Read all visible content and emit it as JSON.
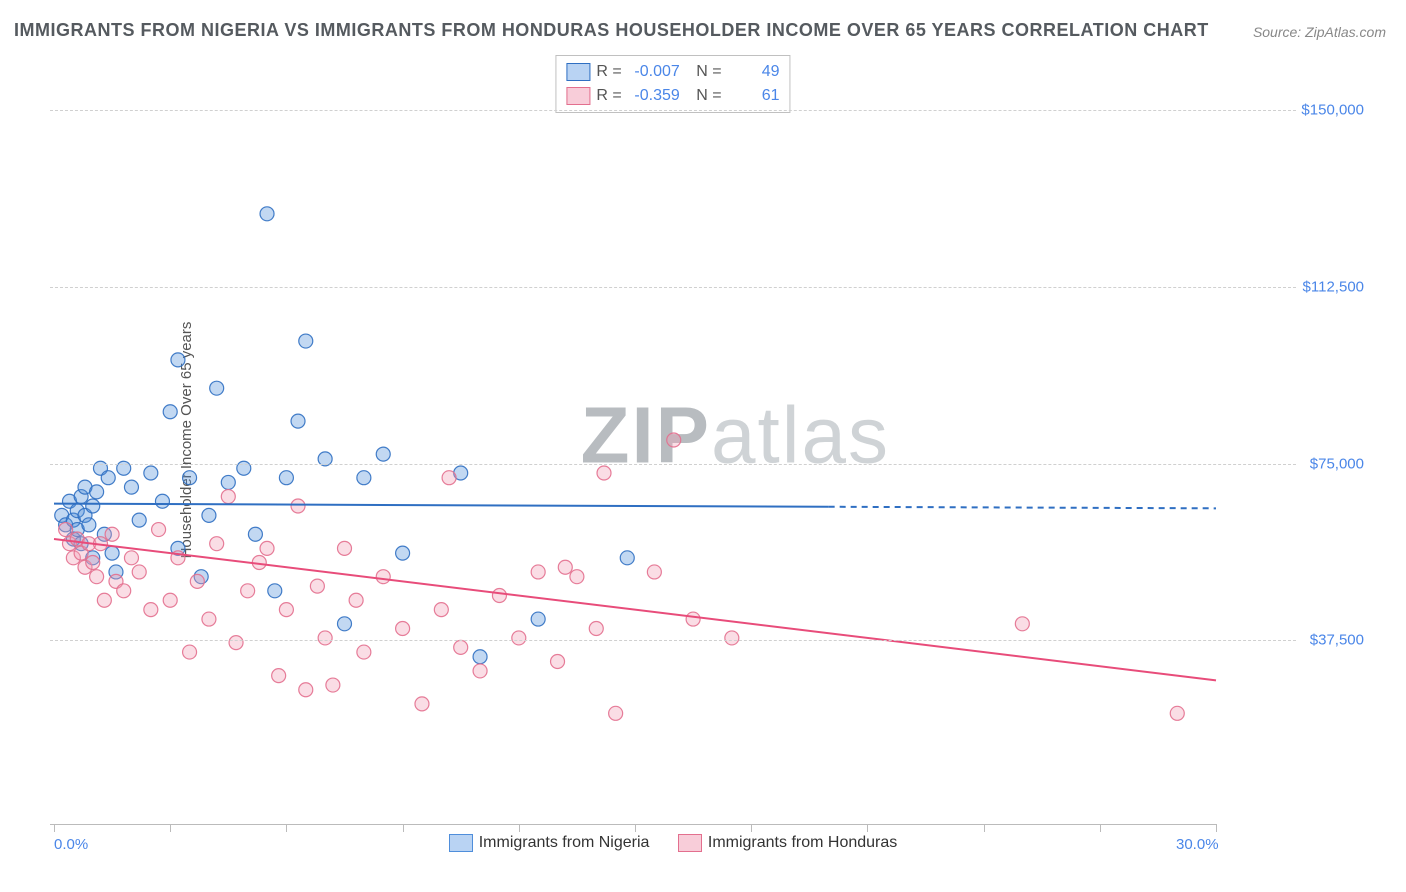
{
  "title": "IMMIGRANTS FROM NIGERIA VS IMMIGRANTS FROM HONDURAS HOUSEHOLDER INCOME OVER 65 YEARS CORRELATION CHART",
  "source_text": "Source: ZipAtlas.com",
  "watermark": "ZIPatlas",
  "chart": {
    "type": "scatter",
    "xlim": [
      0,
      30
    ],
    "ylim": [
      0,
      160000
    ],
    "x_tick_positions": [
      0,
      3,
      6,
      9,
      12,
      15,
      18,
      21,
      24,
      27,
      30
    ],
    "x_tick_labels_shown": {
      "0": "0.0%",
      "30": "30.0%"
    },
    "y_grid_values": [
      37500,
      75000,
      112500,
      150000
    ],
    "y_tick_labels": [
      "$37,500",
      "$75,000",
      "$112,500",
      "$150,000"
    ],
    "ylabel": "Householder Income Over 65 years",
    "background_color": "#ffffff",
    "grid_color": "#d0d0d0",
    "grid_dash": "4,4",
    "marker_radius": 7,
    "marker_fill_opacity": 0.35,
    "marker_stroke_opacity": 0.9,
    "marker_stroke_width": 1.2,
    "trend_line_width": 2,
    "trend_dash_beyond_data": "6,5",
    "series": [
      {
        "name": "Immigrants from Nigeria",
        "color": "#4f8edb",
        "stroke": "#2f6fc2",
        "line_color": "#2f6fc2",
        "R_label": "R =",
        "R": "-0.007",
        "N_label": "N =",
        "N": "49",
        "trend": {
          "x1": 0,
          "y1": 66500,
          "x2": 30,
          "y2": 65500,
          "solid_until_x": 20
        },
        "points": [
          [
            0.2,
            64000
          ],
          [
            0.3,
            62000
          ],
          [
            0.4,
            67000
          ],
          [
            0.5,
            63000
          ],
          [
            0.5,
            59000
          ],
          [
            0.6,
            65000
          ],
          [
            0.6,
            61000
          ],
          [
            0.7,
            68000
          ],
          [
            0.7,
            58000
          ],
          [
            0.8,
            64000
          ],
          [
            0.8,
            70000
          ],
          [
            0.9,
            62000
          ],
          [
            1.0,
            55000
          ],
          [
            1.0,
            66000
          ],
          [
            1.1,
            69000
          ],
          [
            1.2,
            74000
          ],
          [
            1.3,
            60000
          ],
          [
            1.4,
            72000
          ],
          [
            1.5,
            56000
          ],
          [
            1.6,
            52000
          ],
          [
            1.8,
            74000
          ],
          [
            2.0,
            70000
          ],
          [
            2.2,
            63000
          ],
          [
            2.5,
            73000
          ],
          [
            2.8,
            67000
          ],
          [
            3.0,
            86000
          ],
          [
            3.2,
            57000
          ],
          [
            3.2,
            97000
          ],
          [
            3.5,
            72000
          ],
          [
            3.8,
            51000
          ],
          [
            4.0,
            64000
          ],
          [
            4.2,
            91000
          ],
          [
            4.5,
            71000
          ],
          [
            4.9,
            74000
          ],
          [
            5.2,
            60000
          ],
          [
            5.5,
            128000
          ],
          [
            5.7,
            48000
          ],
          [
            6.0,
            72000
          ],
          [
            6.3,
            84000
          ],
          [
            6.5,
            101000
          ],
          [
            7.0,
            76000
          ],
          [
            7.5,
            41000
          ],
          [
            8.0,
            72000
          ],
          [
            8.5,
            77000
          ],
          [
            9.0,
            56000
          ],
          [
            10.5,
            73000
          ],
          [
            11.0,
            34000
          ],
          [
            12.5,
            42000
          ],
          [
            14.8,
            55000
          ]
        ]
      },
      {
        "name": "Immigrants from Honduras",
        "color": "#f19fb4",
        "stroke": "#e36f8e",
        "line_color": "#e84c7a",
        "R_label": "R =",
        "R": "-0.359",
        "N_label": "N =",
        "N": "61",
        "trend": {
          "x1": 0,
          "y1": 59000,
          "x2": 30,
          "y2": 29000,
          "solid_until_x": 30
        },
        "points": [
          [
            0.3,
            61000
          ],
          [
            0.4,
            58000
          ],
          [
            0.5,
            55000
          ],
          [
            0.6,
            59000
          ],
          [
            0.7,
            56000
          ],
          [
            0.8,
            53000
          ],
          [
            0.9,
            58000
          ],
          [
            1.0,
            54000
          ],
          [
            1.1,
            51000
          ],
          [
            1.2,
            58000
          ],
          [
            1.3,
            46000
          ],
          [
            1.5,
            60000
          ],
          [
            1.6,
            50000
          ],
          [
            1.8,
            48000
          ],
          [
            2.0,
            55000
          ],
          [
            2.2,
            52000
          ],
          [
            2.5,
            44000
          ],
          [
            2.7,
            61000
          ],
          [
            3.0,
            46000
          ],
          [
            3.2,
            55000
          ],
          [
            3.5,
            35000
          ],
          [
            3.7,
            50000
          ],
          [
            4.0,
            42000
          ],
          [
            4.2,
            58000
          ],
          [
            4.5,
            68000
          ],
          [
            4.7,
            37000
          ],
          [
            5.0,
            48000
          ],
          [
            5.3,
            54000
          ],
          [
            5.5,
            57000
          ],
          [
            5.8,
            30000
          ],
          [
            6.0,
            44000
          ],
          [
            6.3,
            66000
          ],
          [
            6.5,
            27000
          ],
          [
            6.8,
            49000
          ],
          [
            7.0,
            38000
          ],
          [
            7.2,
            28000
          ],
          [
            7.5,
            57000
          ],
          [
            7.8,
            46000
          ],
          [
            8.0,
            35000
          ],
          [
            8.5,
            51000
          ],
          [
            9.0,
            40000
          ],
          [
            9.5,
            24000
          ],
          [
            10.0,
            44000
          ],
          [
            10.2,
            72000
          ],
          [
            10.5,
            36000
          ],
          [
            11.0,
            31000
          ],
          [
            11.5,
            47000
          ],
          [
            12.0,
            38000
          ],
          [
            12.5,
            52000
          ],
          [
            13.0,
            33000
          ],
          [
            13.5,
            51000
          ],
          [
            14.0,
            40000
          ],
          [
            14.2,
            73000
          ],
          [
            14.5,
            22000
          ],
          [
            15.5,
            52000
          ],
          [
            16.0,
            80000
          ],
          [
            16.5,
            42000
          ],
          [
            17.5,
            38000
          ],
          [
            25.0,
            41000
          ],
          [
            29.0,
            22000
          ],
          [
            13.2,
            53000
          ]
        ]
      }
    ],
    "bottom_legend": [
      {
        "swatch_fill": "#b9d3f3",
        "swatch_stroke": "#4f8edb",
        "label": "Immigrants from Nigeria"
      },
      {
        "swatch_fill": "#f8cdd9",
        "swatch_stroke": "#e36f8e",
        "label": "Immigrants from Honduras"
      }
    ]
  }
}
